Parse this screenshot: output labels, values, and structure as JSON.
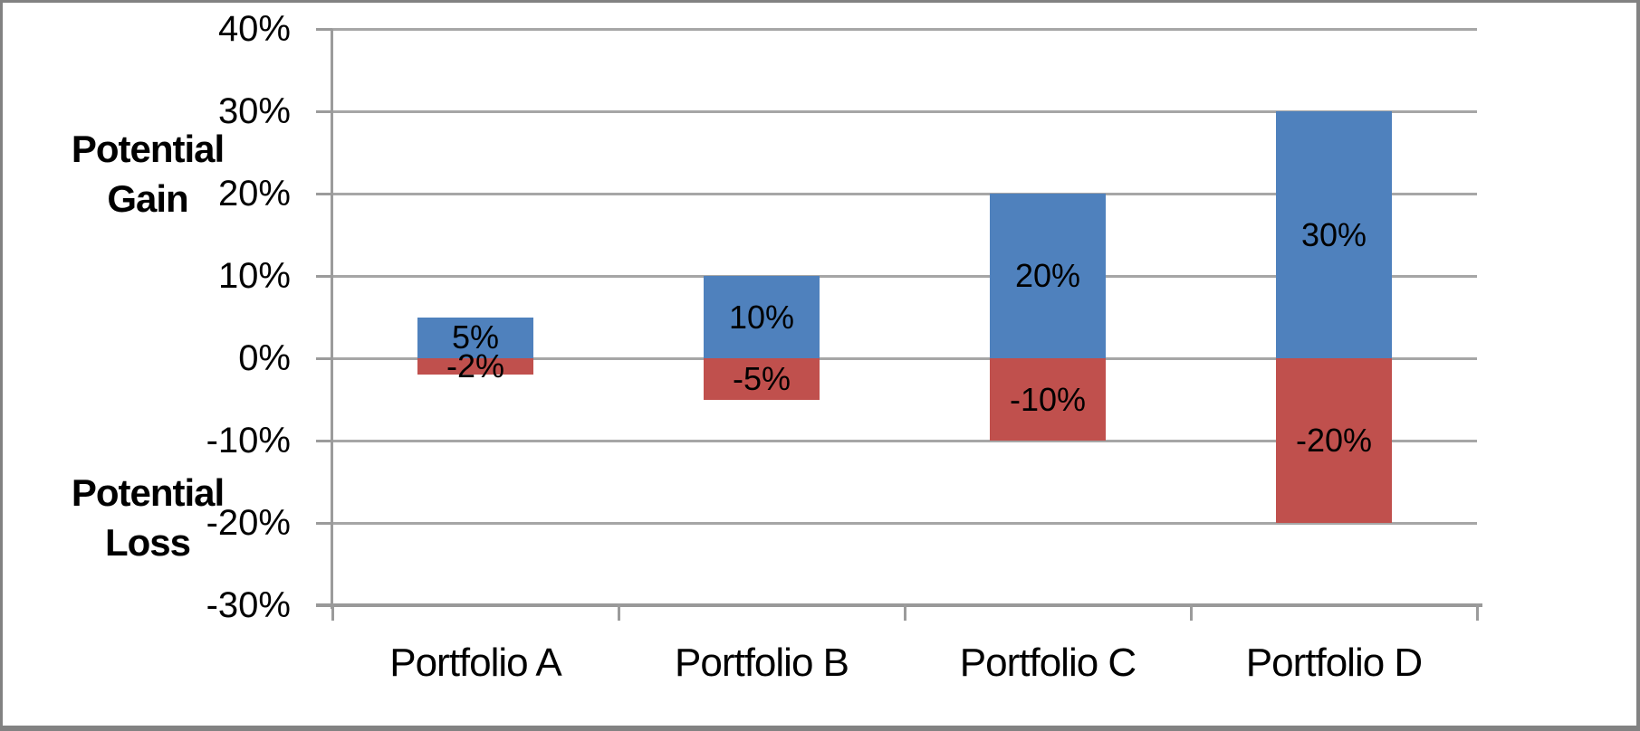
{
  "chart_data": {
    "type": "bar",
    "title": "",
    "categories": [
      "Portfolio A",
      "Portfolio B",
      "Portfolio C",
      "Portfolio D"
    ],
    "series": [
      {
        "name": "Potential Gain",
        "color": "#4f81bd",
        "values": [
          5,
          10,
          20,
          30
        ],
        "data_labels": [
          "5%",
          "10%",
          "20%",
          "30%"
        ]
      },
      {
        "name": "Potential Loss",
        "color": "#c0504d",
        "values": [
          -2,
          -5,
          -10,
          -20
        ],
        "data_labels": [
          "-2%",
          "-5%",
          "-10%",
          "-20%"
        ]
      }
    ],
    "y_axis": {
      "min": -30,
      "max": 40,
      "step": 10,
      "tick_labels": [
        "40%",
        "30%",
        "20%",
        "10%",
        "0%",
        "-10%",
        "-20%",
        "-30%"
      ]
    },
    "annotations": {
      "gain_label": "Potential Gain",
      "loss_label": "Potential Loss"
    },
    "grid": true,
    "legend": "none",
    "colors": {
      "gain_bar": "#4f81bd",
      "loss_bar": "#c0504d",
      "gridline": "#a6a6a6",
      "axis_line": "#9b9b9b",
      "frame_border": "#828282",
      "text": "#000000",
      "background": "#ffffff"
    }
  }
}
